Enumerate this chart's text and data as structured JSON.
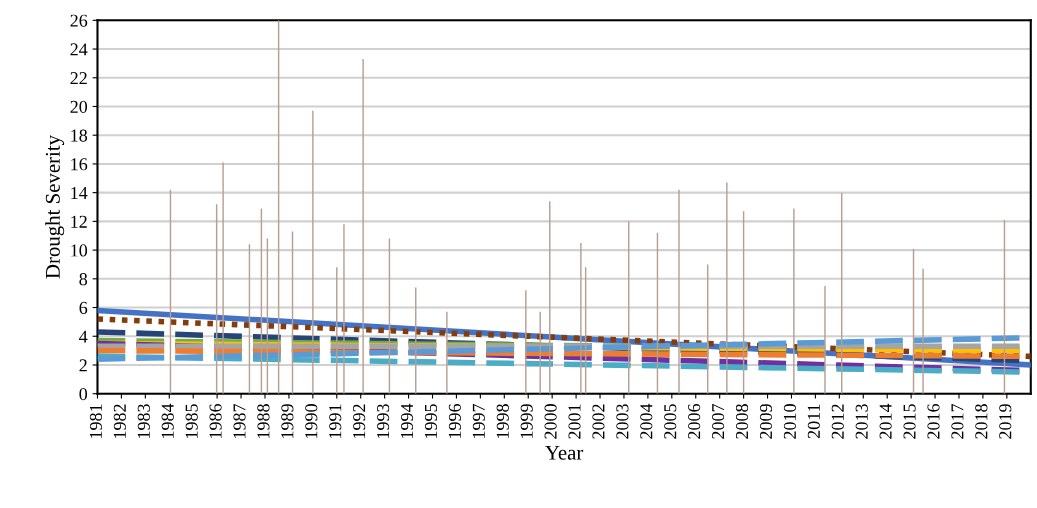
{
  "chart_data": {
    "type": "line",
    "xlabel": "Year",
    "ylabel": "Drought Severity",
    "xlim": [
      1981,
      2020
    ],
    "ylim": [
      0,
      26
    ],
    "xticks": [
      1981,
      1982,
      1983,
      1984,
      1985,
      1986,
      1987,
      1988,
      1989,
      1990,
      1991,
      1992,
      1993,
      1994,
      1995,
      1996,
      1997,
      1998,
      1999,
      2000,
      2001,
      2002,
      2003,
      2004,
      2005,
      2006,
      2007,
      2008,
      2009,
      2010,
      2011,
      2012,
      2013,
      2014,
      2015,
      2016,
      2017,
      2018,
      2019
    ],
    "yticks": [
      0,
      2,
      4,
      6,
      8,
      10,
      12,
      14,
      16,
      18,
      20,
      22,
      24,
      26
    ],
    "grid": "y",
    "legend": false,
    "series": [
      {
        "type": "bar",
        "color": "#b79f92",
        "x": [
          1984.05,
          1985.98,
          1986.25,
          1987.35,
          1987.85,
          1988.1,
          1988.57,
          1989.15,
          1990.0,
          1991.0,
          1991.3,
          1992.1,
          1993.2,
          1994.3,
          1995.6,
          1998.9,
          1999.5,
          1999.9,
          2001.2,
          2001.4,
          2003.2,
          2004.4,
          2005.3,
          2006.5,
          2007.3,
          2008.0,
          2010.1,
          2011.4,
          2012.1,
          2015.1,
          2015.5,
          2018.9
        ],
        "values": [
          14.2,
          13.2,
          16.1,
          10.4,
          12.9,
          10.8,
          26,
          11.3,
          19.7,
          8.8,
          11.8,
          23.3,
          10.8,
          7.4,
          5.7,
          7.2,
          5.7,
          13.4,
          10.5,
          8.8,
          12.0,
          11.2,
          14.2,
          9.0,
          14.7,
          12.7,
          12.9,
          7.5,
          14.0,
          10.1,
          8.7,
          12.1
        ]
      },
      {
        "color": "#4472c4",
        "line_style": "solid",
        "x": [
          1981,
          2020
        ],
        "values": [
          5.8,
          2.0
        ]
      },
      {
        "color": "#843c0c",
        "line_style": "dotted",
        "x": [
          1981,
          2020
        ],
        "values": [
          5.2,
          2.6
        ]
      },
      {
        "color": "#264478",
        "line_style": "dashed",
        "x": [
          1981,
          2020
        ],
        "values": [
          4.3,
          2.3
        ]
      },
      {
        "color": "#70ad47",
        "line_style": "dashed",
        "x": [
          1981,
          2020
        ],
        "values": [
          3.7,
          3.0
        ]
      },
      {
        "color": "#ffc000",
        "line_style": "dashed",
        "x": [
          1981,
          2020
        ],
        "values": [
          3.5,
          3.0
        ]
      },
      {
        "color": "#7030a0",
        "line_style": "dashed",
        "x": [
          1981,
          2020
        ],
        "values": [
          3.5,
          1.6
        ]
      },
      {
        "color": "#a5a5a5",
        "line_style": "dashed",
        "x": [
          1981,
          2020
        ],
        "values": [
          3.3,
          3.3
        ]
      },
      {
        "color": "#ed7d31",
        "line_style": "dashed",
        "x": [
          1981,
          2020
        ],
        "values": [
          3.0,
          2.6
        ]
      },
      {
        "color": "#4bacc6",
        "line_style": "dashed",
        "x": [
          1981,
          2020
        ],
        "values": [
          2.6,
          1.5
        ]
      },
      {
        "color": "#5b9bd5",
        "line_style": "dashed",
        "x": [
          1981,
          2020
        ],
        "values": [
          2.4,
          3.9
        ]
      }
    ]
  }
}
